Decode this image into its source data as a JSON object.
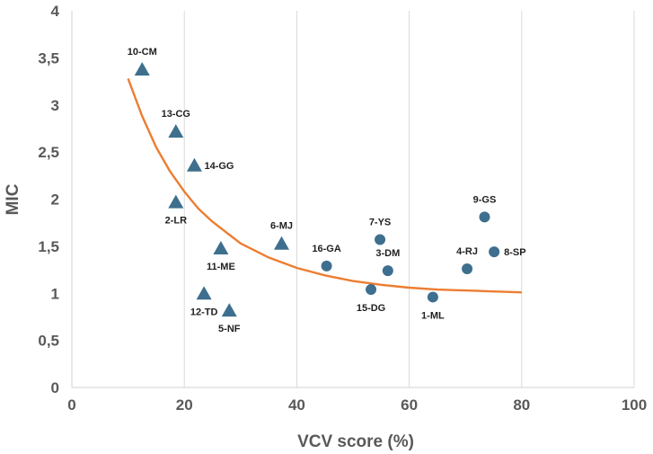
{
  "chart_data": {
    "type": "scatter",
    "title": "",
    "xlabel": "VCV score (%)",
    "ylabel": "MIC",
    "xlim": [
      0,
      100
    ],
    "ylim": [
      0,
      4
    ],
    "x_ticks": [
      0,
      20,
      40,
      60,
      80,
      100
    ],
    "y_ticks": [
      0,
      0.5,
      1,
      1.5,
      2,
      2.5,
      3,
      3.5,
      4
    ],
    "x_tick_labels": [
      "0",
      "20",
      "40",
      "60",
      "80",
      "100"
    ],
    "y_tick_labels": [
      "0",
      "0,5",
      "1",
      "1,5",
      "2",
      "2,5",
      "3",
      "3,5",
      "4"
    ],
    "grid": {
      "vertical": true,
      "horizontal": false
    },
    "legend": "none",
    "colors": {
      "markers": "#3e6f8e",
      "fit": "#ed7d31",
      "grid": "#d9d9d9",
      "text": "#595959"
    },
    "series": [
      {
        "marker": "triangle",
        "points": [
          {
            "label": "10-CM",
            "x": 12.5,
            "y": 3.38,
            "label_pos": "above"
          },
          {
            "label": "13-CG",
            "x": 18.5,
            "y": 2.72,
            "label_pos": "above"
          },
          {
            "label": "14-GG",
            "x": 21.8,
            "y": 2.36,
            "label_pos": "right"
          },
          {
            "label": "2-LR",
            "x": 18.5,
            "y": 1.97,
            "label_pos": "below"
          },
          {
            "label": "11-ME",
            "x": 26.5,
            "y": 1.48,
            "label_pos": "below"
          },
          {
            "label": "12-TD",
            "x": 23.5,
            "y": 1.0,
            "label_pos": "below"
          },
          {
            "label": "5-NF",
            "x": 28.0,
            "y": 0.82,
            "label_pos": "below"
          },
          {
            "label": "6-MJ",
            "x": 37.3,
            "y": 1.53,
            "label_pos": "above"
          }
        ]
      },
      {
        "marker": "circle",
        "points": [
          {
            "label": "16-GA",
            "x": 45.3,
            "y": 1.29,
            "label_pos": "above"
          },
          {
            "label": "7-YS",
            "x": 54.8,
            "y": 1.57,
            "label_pos": "above"
          },
          {
            "label": "3-DM",
            "x": 56.2,
            "y": 1.24,
            "label_pos": "above"
          },
          {
            "label": "15-DG",
            "x": 53.2,
            "y": 1.04,
            "label_pos": "below"
          },
          {
            "label": "1-ML",
            "x": 64.2,
            "y": 0.96,
            "label_pos": "below"
          },
          {
            "label": "4-RJ",
            "x": 70.3,
            "y": 1.26,
            "label_pos": "above"
          },
          {
            "label": "9-GS",
            "x": 73.4,
            "y": 1.81,
            "label_pos": "above"
          },
          {
            "label": "8-SP",
            "x": 75.1,
            "y": 1.44,
            "label_pos": "right"
          }
        ]
      }
    ],
    "trendline": {
      "type": "fit-curve",
      "points": [
        {
          "x": 10,
          "y": 3.28
        },
        {
          "x": 12.5,
          "y": 2.88
        },
        {
          "x": 15,
          "y": 2.55
        },
        {
          "x": 17.5,
          "y": 2.29
        },
        {
          "x": 20,
          "y": 2.08
        },
        {
          "x": 22.5,
          "y": 1.9
        },
        {
          "x": 25,
          "y": 1.76
        },
        {
          "x": 30,
          "y": 1.53
        },
        {
          "x": 35,
          "y": 1.38
        },
        {
          "x": 40,
          "y": 1.27
        },
        {
          "x": 45,
          "y": 1.19
        },
        {
          "x": 50,
          "y": 1.13
        },
        {
          "x": 55,
          "y": 1.09
        },
        {
          "x": 60,
          "y": 1.06
        },
        {
          "x": 65,
          "y": 1.04
        },
        {
          "x": 70,
          "y": 1.03
        },
        {
          "x": 75,
          "y": 1.02
        },
        {
          "x": 80,
          "y": 1.01
        }
      ]
    }
  }
}
